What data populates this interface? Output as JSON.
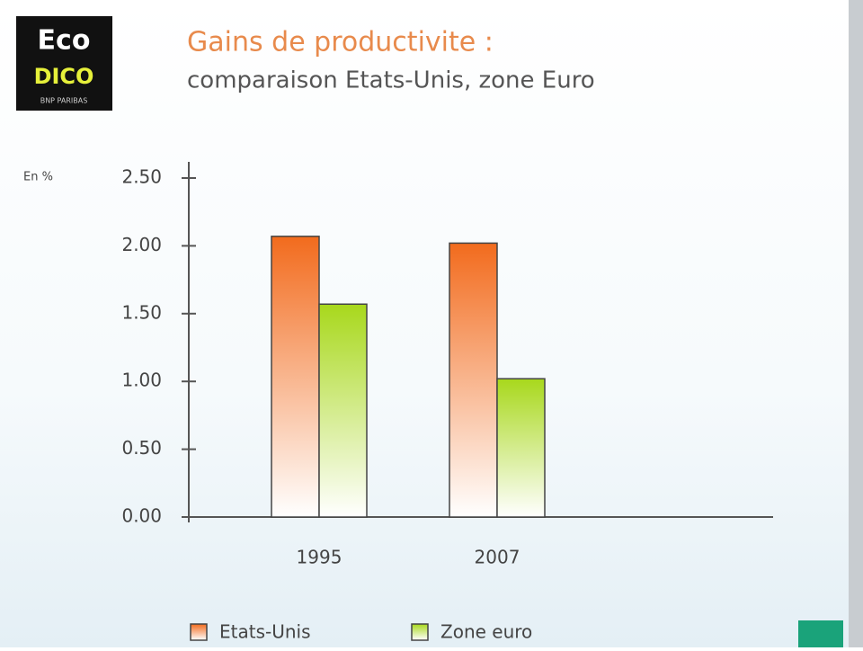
{
  "logo": {
    "top": "Eco",
    "middle": "DICO",
    "bottom": "BNP PARIBAS"
  },
  "chart_data": {
    "type": "bar",
    "title": "Gains de productivite :",
    "subtitle": "comparaison Etats-Unis, zone Euro",
    "y_label": "En %",
    "categories": [
      "1995",
      "2007"
    ],
    "series": [
      {
        "name": "Etats-Unis",
        "color": "#f26b1d",
        "values": [
          2.07,
          2.02
        ]
      },
      {
        "name": "Zone euro",
        "color": "#a8d81c",
        "values": [
          1.57,
          1.02
        ]
      }
    ],
    "ylim": [
      0,
      2.5
    ],
    "yticks": [
      {
        "value": 0,
        "label": "0.00"
      },
      {
        "value": 0.5,
        "label": "0.50"
      },
      {
        "value": 1,
        "label": "1.00"
      },
      {
        "value": 1.5,
        "label": "1.50"
      },
      {
        "value": 2,
        "label": "2.00"
      },
      {
        "value": 2.5,
        "label": "2.50"
      }
    ],
    "legend": "bottom"
  }
}
